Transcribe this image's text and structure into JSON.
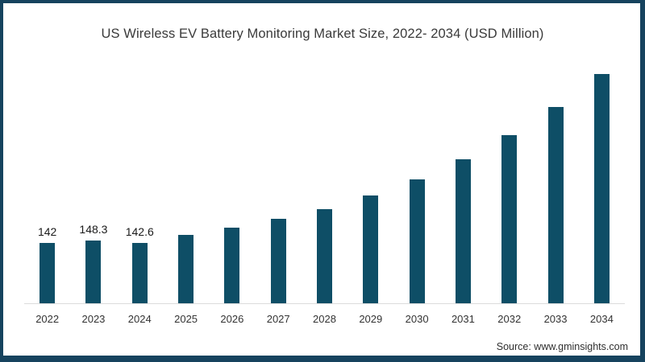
{
  "chart_data": {
    "type": "bar",
    "title": "US Wireless EV Battery Monitoring Market Size, 2022- 2034 (USD Million)",
    "categories": [
      "2022",
      "2023",
      "2024",
      "2025",
      "2026",
      "2027",
      "2028",
      "2029",
      "2030",
      "2031",
      "2032",
      "2033",
      "2034"
    ],
    "values": [
      142,
      148.3,
      142.6,
      161,
      178,
      198,
      220,
      252,
      290,
      336,
      392,
      458,
      534
    ],
    "data_labels": [
      "142",
      "148.3",
      "142.6",
      "",
      "",
      "",
      "",
      "",
      "",
      "",
      "",
      "",
      ""
    ],
    "xlabel": "",
    "ylabel": "",
    "ylim": [
      0,
      560
    ],
    "grid": false,
    "legend_position": "none",
    "bar_color": "#0E4E66",
    "axis_line_color": "#DBDBDB",
    "source": "Source: www.gminsights.com"
  },
  "frame": {
    "border_color": "#16435E"
  }
}
